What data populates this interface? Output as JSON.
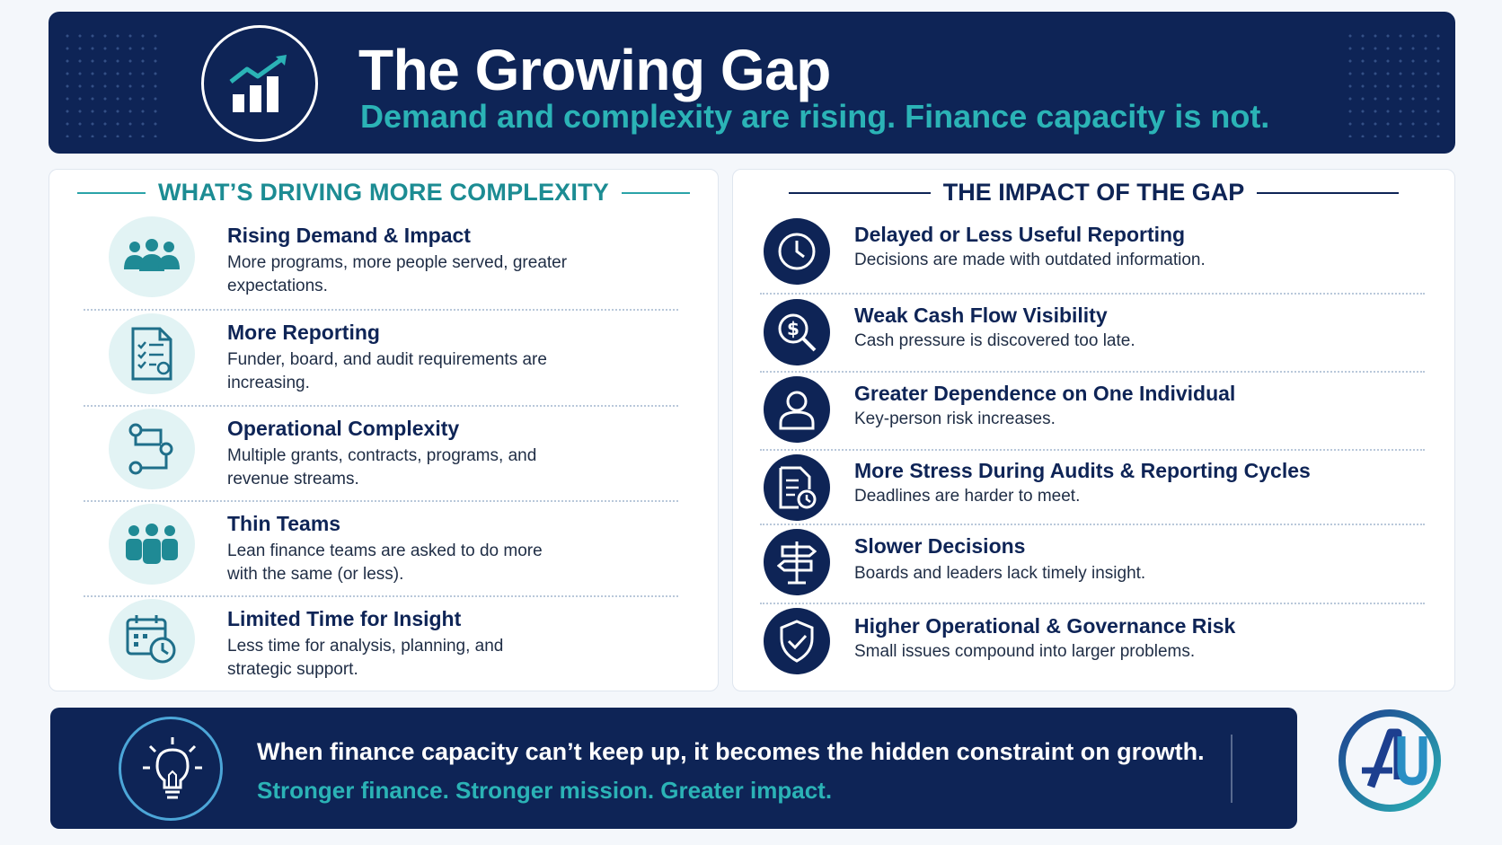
{
  "header": {
    "title": "The Growing Gap",
    "subtitle": "Demand and complexity are rising. Finance capacity is not.",
    "icon": "growth-chart-icon"
  },
  "drivers": {
    "heading": "WHAT’S DRIVING MORE COMPLEXITY",
    "items": [
      {
        "icon": "people-group-icon",
        "title": "Rising Demand & Impact",
        "desc": "More programs, more people served, greater expectations."
      },
      {
        "icon": "report-checklist-icon",
        "title": "More Reporting",
        "desc": "Funder, board, and audit requirements are increasing."
      },
      {
        "icon": "workflow-icon",
        "title": "Operational Complexity",
        "desc": "Multiple grants, contracts, programs, and revenue streams."
      },
      {
        "icon": "team-icon",
        "title": "Thin Teams",
        "desc": "Lean finance teams are asked to do more with the same (or less)."
      },
      {
        "icon": "calendar-clock-icon",
        "title": "Limited Time for Insight",
        "desc": "Less time for analysis, planning, and strategic support."
      }
    ]
  },
  "impact": {
    "heading": "THE IMPACT OF THE GAP",
    "items": [
      {
        "icon": "clock-icon",
        "title": "Delayed or Less Useful Reporting",
        "desc": "Decisions are made with outdated information."
      },
      {
        "icon": "dollar-search-icon",
        "title": "Weak Cash Flow Visibility",
        "desc": "Cash pressure is discovered too late."
      },
      {
        "icon": "person-icon",
        "title": "Greater Dependence on One Individual",
        "desc": "Key-person risk increases."
      },
      {
        "icon": "document-clock-icon",
        "title": "More Stress During Audits & Reporting Cycles",
        "desc": "Deadlines are harder to meet."
      },
      {
        "icon": "signpost-icon",
        "title": "Slower Decisions",
        "desc": "Boards and leaders lack timely insight."
      },
      {
        "icon": "shield-check-icon",
        "title": "Higher Operational & Governance Risk",
        "desc": "Small issues compound into larger problems."
      }
    ]
  },
  "footer": {
    "main": "When finance capacity can’t keep up, it becomes the hidden constraint on growth.",
    "sub": "Stronger finance. Stronger mission. Greater impact.",
    "icon": "lightbulb-icon"
  },
  "logo": {
    "icon": "au-logo-icon",
    "text": "AU"
  },
  "colors": {
    "navy": "#0e2456",
    "teal": "#2bb3b6",
    "teal_dark": "#1c8c93",
    "light_teal": "#e2f3f4"
  }
}
